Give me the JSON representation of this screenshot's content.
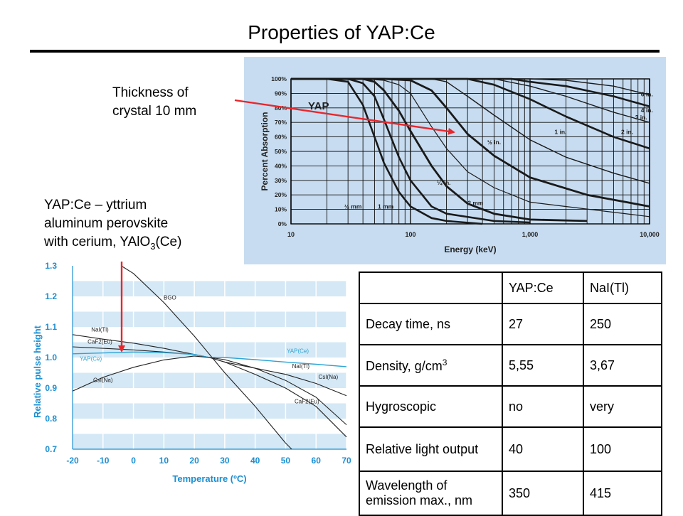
{
  "slide": {
    "title": "Properties of YAP:Ce",
    "note_thickness": [
      "Thickness of",
      "crystal 10 mm"
    ],
    "note_yap": [
      "YAP:Ce – yttrium",
      "aluminum perovskite",
      "with cerium, YAlO",
      "3",
      "(Ce)"
    ]
  },
  "chart_data": [
    {
      "type": "line",
      "xlabel": "Energy (keV)",
      "ylabel": "Percent Absorption",
      "xscale": "log",
      "xlim": [
        10,
        10000
      ],
      "ylim": [
        0,
        100
      ],
      "x_tick_labels": [
        "10",
        "100",
        "1,000",
        "10,000"
      ],
      "y_tick_labels": [
        "0%",
        "10%",
        "20%",
        "30%",
        "40%",
        "50%",
        "60%",
        "70%",
        "80%",
        "90%",
        "100%"
      ],
      "annotation": "YAP",
      "grid": true,
      "background": "#c7dcf0",
      "series": [
        {
          "name": "½ mm",
          "points": [
            [
              10,
              100
            ],
            [
              20,
              100
            ],
            [
              30,
              98
            ],
            [
              40,
              82
            ],
            [
              50,
              60
            ],
            [
              60,
              42
            ],
            [
              80,
              22
            ],
            [
              100,
              12
            ],
            [
              150,
              4
            ],
            [
              200,
              2
            ],
            [
              400,
              0
            ]
          ]
        },
        {
          "name": "1 mm",
          "points": [
            [
              10,
              100
            ],
            [
              30,
              100
            ],
            [
              40,
              97
            ],
            [
              50,
              88
            ],
            [
              60,
              72
            ],
            [
              80,
              46
            ],
            [
              100,
              30
            ],
            [
              150,
              12
            ],
            [
              200,
              7
            ],
            [
              500,
              2
            ],
            [
              1000,
              1
            ]
          ]
        },
        {
          "name": "¼ in.",
          "points": [
            [
              10,
              100
            ],
            [
              40,
              100
            ],
            [
              60,
              99
            ],
            [
              80,
              96
            ],
            [
              100,
              90
            ],
            [
              150,
              67
            ],
            [
              200,
              52
            ],
            [
              300,
              36
            ],
            [
              500,
              25
            ],
            [
              1000,
              15
            ],
            [
              10000,
              5
            ]
          ]
        },
        {
          "name": "½ in.",
          "points": [
            [
              10,
              100
            ],
            [
              60,
              100
            ],
            [
              100,
              99
            ],
            [
              150,
              92
            ],
            [
              200,
              80
            ],
            [
              300,
              62
            ],
            [
              500,
              47
            ],
            [
              1000,
              32
            ],
            [
              3000,
              20
            ],
            [
              10000,
              12
            ]
          ]
        },
        {
          "name": "1 in.",
          "points": [
            [
              10,
              100
            ],
            [
              150,
              100
            ],
            [
              200,
              98
            ],
            [
              300,
              88
            ],
            [
              500,
              75
            ],
            [
              1000,
              58
            ],
            [
              2000,
              46
            ],
            [
              5000,
              35
            ],
            [
              10000,
              28
            ]
          ]
        },
        {
          "name": "2 in.",
          "points": [
            [
              10,
              100
            ],
            [
              300,
              100
            ],
            [
              500,
              96
            ],
            [
              1000,
              86
            ],
            [
              2000,
              74
            ],
            [
              5000,
              60
            ],
            [
              10000,
              52
            ]
          ]
        },
        {
          "name": "3 in.",
          "points": [
            [
              10,
              100
            ],
            [
              500,
              100
            ],
            [
              1000,
              95
            ],
            [
              2000,
              88
            ],
            [
              5000,
              77
            ],
            [
              10000,
              70
            ]
          ]
        },
        {
          "name": "4 in.",
          "points": [
            [
              10,
              100
            ],
            [
              700,
              100
            ],
            [
              1000,
              98
            ],
            [
              2000,
              95
            ],
            [
              5000,
              88
            ],
            [
              10000,
              81
            ]
          ]
        },
        {
          "name": "6 in.",
          "points": [
            [
              10,
              100
            ],
            [
              1000,
              100
            ],
            [
              2000,
              99
            ],
            [
              5000,
              95
            ],
            [
              10000,
              89
            ]
          ]
        },
        {
          "name": "2 mm",
          "points": [
            [
              10,
              100
            ],
            [
              40,
              100
            ],
            [
              50,
              98
            ],
            [
              60,
              92
            ],
            [
              80,
              78
            ],
            [
              100,
              64
            ],
            [
              150,
              40
            ],
            [
              200,
              26
            ],
            [
              300,
              14
            ],
            [
              500,
              7
            ],
            [
              1000,
              3
            ],
            [
              3000,
              2
            ]
          ]
        }
      ]
    },
    {
      "type": "line",
      "xlabel": "Temperature (ºC)",
      "ylabel": "Relative pulse height",
      "xlim": [
        -20,
        70
      ],
      "ylim": [
        0.7,
        1.3
      ],
      "x_tick_labels": [
        "-20",
        "-10",
        "0",
        "10",
        "20",
        "30",
        "40",
        "50",
        "60",
        "70"
      ],
      "y_tick_labels": [
        "0.7",
        "0.8",
        "0.9",
        "1.0",
        "1.1",
        "1.2",
        "1.3"
      ],
      "grid": true,
      "series": [
        {
          "name": "BGO",
          "points": [
            [
              -4,
              1.3
            ],
            [
              0,
              1.275
            ],
            [
              10,
              1.18
            ],
            [
              20,
              1.07
            ],
            [
              25,
              1.01
            ],
            [
              30,
              0.95
            ],
            [
              40,
              0.84
            ],
            [
              50,
              0.72
            ],
            [
              52,
              0.7
            ]
          ]
        },
        {
          "name": "NaI(Tl)",
          "points": [
            [
              -20,
              1.075
            ],
            [
              -10,
              1.06
            ],
            [
              0,
              1.047
            ],
            [
              10,
              1.03
            ],
            [
              20,
              1.01
            ],
            [
              25,
              1.0
            ],
            [
              30,
              0.985
            ],
            [
              40,
              0.965
            ],
            [
              50,
              0.945
            ],
            [
              60,
              0.915
            ],
            [
              70,
              0.875
            ]
          ]
        },
        {
          "name": "CaF2(Eu)",
          "points": [
            [
              -20,
              1.035
            ],
            [
              -10,
              1.03
            ],
            [
              0,
              1.025
            ],
            [
              10,
              1.018
            ],
            [
              20,
              1.01
            ],
            [
              25,
              1.0
            ],
            [
              30,
              0.985
            ],
            [
              40,
              0.945
            ],
            [
              50,
              0.9
            ],
            [
              60,
              0.84
            ],
            [
              70,
              0.74
            ]
          ]
        },
        {
          "name": "YAP(Ce)",
          "points": [
            [
              -20,
              1.012
            ],
            [
              -10,
              1.015
            ],
            [
              0,
              1.018
            ],
            [
              10,
              1.016
            ],
            [
              20,
              1.01
            ],
            [
              25,
              1.0
            ],
            [
              30,
              1.0
            ],
            [
              40,
              0.993
            ],
            [
              50,
              0.985
            ],
            [
              60,
              0.978
            ],
            [
              70,
              0.97
            ]
          ]
        },
        {
          "name": "CsI(Na)",
          "points": [
            [
              -20,
              0.89
            ],
            [
              -10,
              0.935
            ],
            [
              0,
              0.968
            ],
            [
              10,
              0.992
            ],
            [
              20,
              1.005
            ],
            [
              25,
              1.0
            ],
            [
              30,
              0.993
            ],
            [
              40,
              0.965
            ],
            [
              50,
              0.925
            ],
            [
              60,
              0.87
            ],
            [
              70,
              0.78
            ]
          ]
        }
      ]
    }
  ],
  "table": {
    "header": [
      "",
      "YAP:Ce",
      "NaI(Tl)"
    ],
    "rows": [
      {
        "label": "Decay time, ns",
        "yap": "27",
        "nai": "250"
      },
      {
        "label": "Density, g/cm",
        "label_sup": "3",
        "yap": "5,55",
        "nai": "3,67"
      },
      {
        "label": "Hygroscopic",
        "yap": "no",
        "nai": "very"
      },
      {
        "label": "Relative light output",
        "yap": "40",
        "nai": "100"
      },
      {
        "label": "Wavelength of emission max., nm",
        "yap": "350",
        "nai": "415"
      }
    ]
  },
  "colors": {
    "arrow": "#e8262b",
    "abs_bg": "#c7dcf0",
    "temp_band": "#d4e8f5",
    "temp_axis": "#1c8ed0",
    "yap_line": "#2ba4d6"
  }
}
